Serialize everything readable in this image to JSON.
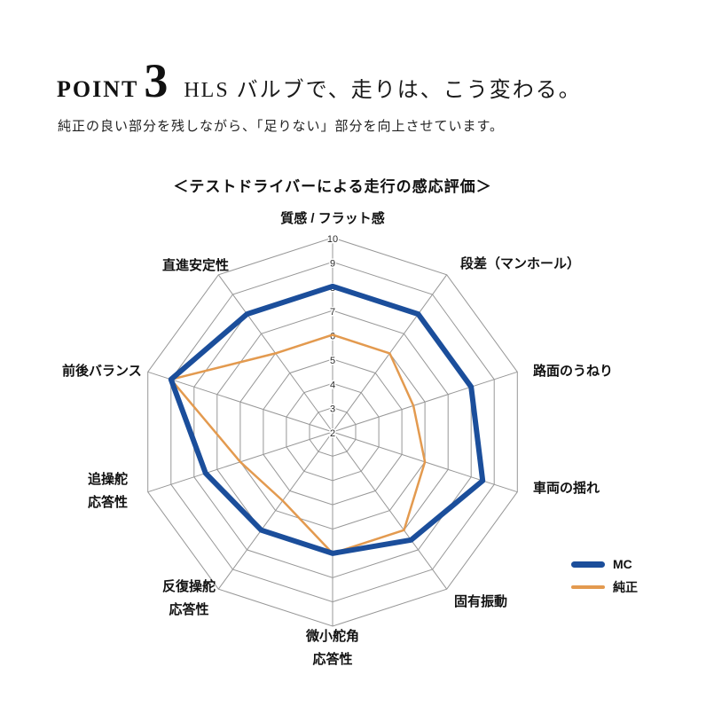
{
  "header": {
    "point_label": "POINT",
    "point_number": "3",
    "heading": "HLS バルブで、走りは、こう変わる。",
    "subtitle": "純正の良い部分を残しながら、「足りない」部分を向上させています。"
  },
  "chart_data": {
    "type": "radar",
    "title": "＜テストドライバーによる走行の感応評価＞",
    "axes": [
      "質感 / フラット感",
      "段差（マンホール）",
      "路面のうねり",
      "車両の揺れ",
      "固有振動",
      "微小舵角\n応答性",
      "反復操舵\n応答性",
      "追操舵\n応答性",
      "前後バランス",
      "直進安定性"
    ],
    "scale": {
      "min": 2,
      "max": 10,
      "step": 1,
      "tick_labels": [
        10,
        9,
        8,
        7,
        6,
        5,
        4,
        3,
        2
      ]
    },
    "series": [
      {
        "name": "MC",
        "color": "#1b4e9b",
        "stroke_width": 6,
        "values": [
          8,
          8,
          8,
          8.5,
          7.5,
          7,
          7,
          7.5,
          9,
          8
        ]
      },
      {
        "name": "純正",
        "color": "#e39a4f",
        "stroke_width": 2.5,
        "values": [
          6,
          6,
          5.5,
          6,
          7,
          7,
          5.5,
          6,
          9,
          6
        ]
      }
    ],
    "grid_color": "#979797",
    "legend_position": "right"
  }
}
